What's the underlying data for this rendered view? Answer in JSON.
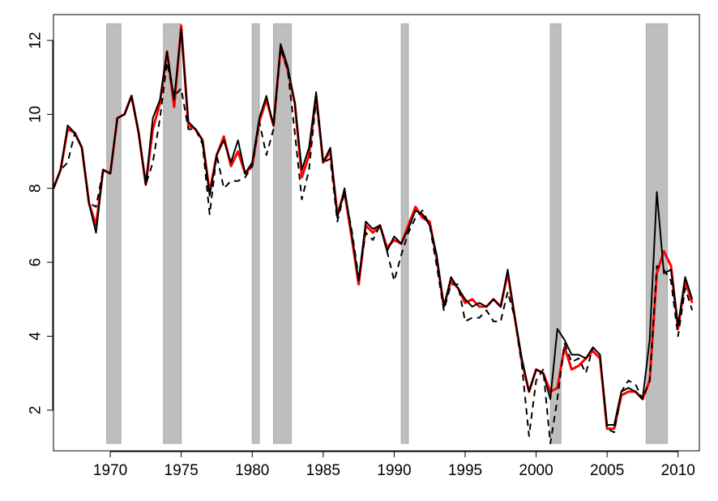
{
  "chart_data": {
    "type": "line",
    "title": "",
    "xlabel": "",
    "ylabel": "",
    "xlim": [
      1966,
      2011.5
    ],
    "ylim": [
      0.9,
      12.7
    ],
    "xticks": [
      1970,
      1975,
      1980,
      1985,
      1990,
      1995,
      2000,
      2005,
      2010
    ],
    "yticks": [
      2,
      4,
      6,
      8,
      10,
      12
    ],
    "shaded_regions": [
      {
        "start": 1969.75,
        "end": 1970.75
      },
      {
        "start": 1973.75,
        "end": 1975.0
      },
      {
        "start": 1980.0,
        "end": 1980.5
      },
      {
        "start": 1981.5,
        "end": 1982.75
      },
      {
        "start": 1990.5,
        "end": 1991.0
      },
      {
        "start": 2001.0,
        "end": 2001.75
      },
      {
        "start": 2007.75,
        "end": 2009.25
      }
    ],
    "shade_range": [
      1.1,
      12.45
    ],
    "series": [
      {
        "name": "series-red",
        "color": "#ff0000",
        "style": "solid",
        "x": [
          1966.0,
          1966.5,
          1967.0,
          1967.5,
          1968.0,
          1968.5,
          1969.0,
          1969.5,
          1970.0,
          1970.5,
          1971.0,
          1971.5,
          1972.0,
          1972.5,
          1973.0,
          1973.5,
          1974.0,
          1974.5,
          1975.0,
          1975.5,
          1976.0,
          1976.5,
          1977.0,
          1977.5,
          1978.0,
          1978.5,
          1979.0,
          1979.5,
          1980.0,
          1980.5,
          1981.0,
          1981.5,
          1982.0,
          1982.5,
          1983.0,
          1983.5,
          1984.0,
          1984.5,
          1985.0,
          1985.5,
          1986.0,
          1986.5,
          1987.0,
          1987.5,
          1988.0,
          1988.5,
          1989.0,
          1989.5,
          1990.0,
          1990.5,
          1991.0,
          1991.5,
          1992.0,
          1992.5,
          1993.0,
          1993.5,
          1994.0,
          1994.5,
          1995.0,
          1995.5,
          1996.0,
          1996.5,
          1997.0,
          1997.5,
          1998.0,
          1998.5,
          1999.0,
          1999.5,
          2000.0,
          2000.5,
          2001.0,
          2001.5,
          2002.0,
          2002.5,
          2003.0,
          2003.5,
          2004.0,
          2004.5,
          2005.0,
          2005.5,
          2006.0,
          2006.5,
          2007.0,
          2007.5,
          2008.0,
          2008.5,
          2009.0,
          2009.5,
          2010.0,
          2010.5,
          2011.0
        ],
        "y": [
          8.0,
          8.5,
          9.6,
          9.5,
          9.1,
          7.6,
          7.0,
          8.5,
          8.4,
          9.9,
          10.0,
          10.5,
          9.5,
          8.1,
          9.6,
          10.3,
          11.7,
          10.2,
          12.4,
          9.7,
          9.6,
          9.3,
          7.9,
          8.9,
          9.4,
          8.6,
          9.0,
          8.4,
          8.6,
          9.8,
          10.4,
          9.7,
          11.8,
          11.2,
          10.3,
          8.3,
          8.9,
          10.5,
          8.7,
          9.0,
          7.3,
          7.9,
          6.7,
          5.4,
          7.0,
          6.8,
          7.0,
          6.4,
          6.6,
          6.5,
          7.0,
          7.5,
          7.2,
          7.1,
          6.1,
          4.8,
          5.5,
          5.3,
          4.9,
          5.0,
          4.8,
          4.8,
          5.0,
          4.8,
          5.7,
          4.5,
          3.3,
          2.5,
          3.1,
          3.0,
          2.5,
          2.6,
          3.7,
          3.1,
          3.2,
          3.4,
          3.6,
          3.4,
          1.5,
          1.5,
          2.4,
          2.5,
          2.5,
          2.3,
          2.8,
          5.7,
          6.3,
          5.9,
          4.2,
          5.5,
          4.9
        ]
      },
      {
        "name": "series-black-dashed",
        "color": "#000000",
        "style": "dashed",
        "x": [
          1966.0,
          1966.5,
          1967.0,
          1967.5,
          1968.0,
          1968.5,
          1969.0,
          1969.5,
          1970.0,
          1970.5,
          1971.0,
          1971.5,
          1972.0,
          1972.5,
          1973.0,
          1973.5,
          1974.0,
          1974.5,
          1975.0,
          1975.5,
          1976.0,
          1976.5,
          1977.0,
          1977.5,
          1978.0,
          1978.5,
          1979.0,
          1979.5,
          1980.0,
          1980.5,
          1981.0,
          1981.5,
          1982.0,
          1982.5,
          1983.0,
          1983.5,
          1984.0,
          1984.5,
          1985.0,
          1985.5,
          1986.0,
          1986.5,
          1987.0,
          1987.5,
          1988.0,
          1988.5,
          1989.0,
          1989.5,
          1990.0,
          1990.5,
          1991.0,
          1991.5,
          1992.0,
          1992.5,
          1993.0,
          1993.5,
          1994.0,
          1994.5,
          1995.0,
          1995.5,
          1996.0,
          1996.5,
          1997.0,
          1997.5,
          1998.0,
          1998.5,
          1999.0,
          1999.5,
          2000.0,
          2000.5,
          2001.0,
          2001.5,
          2002.0,
          2002.5,
          2003.0,
          2003.5,
          2004.0,
          2004.5,
          2005.0,
          2005.5,
          2006.0,
          2006.5,
          2007.0,
          2007.5,
          2008.0,
          2008.5,
          2009.0,
          2009.5,
          2010.0,
          2010.5,
          2011.0
        ],
        "y": [
          8.0,
          8.5,
          8.7,
          9.5,
          9.1,
          7.6,
          7.5,
          8.5,
          8.4,
          9.9,
          10.0,
          10.5,
          9.5,
          8.1,
          8.7,
          9.9,
          11.4,
          10.5,
          10.7,
          9.6,
          9.6,
          9.2,
          7.3,
          8.9,
          8.0,
          8.2,
          8.2,
          8.3,
          8.6,
          9.8,
          8.9,
          9.6,
          11.8,
          11.2,
          9.5,
          7.7,
          8.5,
          10.4,
          8.7,
          8.8,
          7.1,
          7.9,
          6.9,
          5.6,
          6.8,
          6.6,
          7.0,
          6.3,
          5.5,
          6.2,
          6.8,
          7.2,
          7.4,
          7.0,
          5.9,
          4.7,
          5.4,
          5.4,
          4.4,
          4.5,
          4.5,
          4.7,
          4.4,
          4.4,
          5.2,
          4.5,
          3.2,
          1.3,
          2.8,
          3.1,
          1.1,
          2.3,
          3.8,
          3.3,
          3.4,
          3.0,
          3.7,
          3.5,
          1.5,
          1.4,
          2.5,
          2.8,
          2.7,
          2.3,
          2.8,
          5.9,
          5.8,
          5.5,
          4.0,
          5.3,
          4.7
        ]
      },
      {
        "name": "series-black-solid",
        "color": "#000000",
        "style": "solid",
        "x": [
          1966.0,
          1966.5,
          1967.0,
          1967.5,
          1968.0,
          1968.5,
          1969.0,
          1969.5,
          1970.0,
          1970.5,
          1971.0,
          1971.5,
          1972.0,
          1972.5,
          1973.0,
          1973.5,
          1974.0,
          1974.5,
          1975.0,
          1975.5,
          1976.0,
          1976.5,
          1977.0,
          1977.5,
          1978.0,
          1978.5,
          1979.0,
          1979.5,
          1980.0,
          1980.5,
          1981.0,
          1981.5,
          1982.0,
          1982.5,
          1983.0,
          1983.5,
          1984.0,
          1984.5,
          1985.0,
          1985.5,
          1986.0,
          1986.5,
          1987.0,
          1987.5,
          1988.0,
          1988.5,
          1989.0,
          1989.5,
          1990.0,
          1990.5,
          1991.0,
          1991.5,
          1992.0,
          1992.5,
          1993.0,
          1993.5,
          1994.0,
          1994.5,
          1995.0,
          1995.5,
          1996.0,
          1996.5,
          1997.0,
          1997.5,
          1998.0,
          1998.5,
          1999.0,
          1999.5,
          2000.0,
          2000.5,
          2001.0,
          2001.5,
          2002.0,
          2002.5,
          2003.0,
          2003.5,
          2004.0,
          2004.5,
          2005.0,
          2005.5,
          2006.0,
          2006.5,
          2007.0,
          2007.5,
          2008.0,
          2008.5,
          2009.0,
          2009.5,
          2010.0,
          2010.5,
          2011.0
        ],
        "y": [
          8.0,
          8.5,
          9.7,
          9.5,
          9.1,
          7.6,
          6.8,
          8.5,
          8.4,
          9.9,
          10.0,
          10.5,
          9.5,
          8.1,
          9.9,
          10.4,
          11.7,
          10.4,
          12.3,
          9.8,
          9.6,
          9.3,
          7.8,
          8.9,
          9.3,
          8.7,
          9.3,
          8.4,
          8.7,
          9.9,
          10.5,
          9.7,
          11.9,
          11.3,
          10.3,
          8.5,
          9.1,
          10.6,
          8.7,
          9.1,
          7.2,
          8.0,
          6.8,
          5.5,
          7.1,
          6.9,
          7.0,
          6.3,
          6.7,
          6.5,
          6.9,
          7.4,
          7.3,
          7.0,
          6.2,
          4.8,
          5.6,
          5.3,
          5.0,
          4.8,
          4.9,
          4.8,
          5.0,
          4.8,
          5.8,
          4.5,
          3.4,
          2.5,
          3.1,
          3.0,
          2.3,
          4.2,
          3.9,
          3.5,
          3.5,
          3.4,
          3.7,
          3.5,
          1.6,
          1.6,
          2.5,
          2.6,
          2.5,
          2.3,
          3.9,
          7.9,
          5.7,
          5.8,
          4.3,
          5.6,
          5.0
        ]
      }
    ]
  }
}
